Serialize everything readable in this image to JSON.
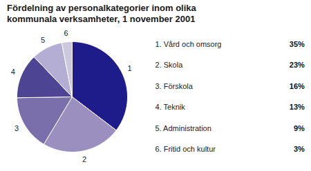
{
  "chart_data": {
    "type": "pie",
    "title": "Fördelning av personalkategorier inom olika\nkommunala verksamheter, 1 november 2001",
    "categories": [
      "1. Vård och omsorg",
      "2. Skola",
      "3. Förskola",
      "4. Teknik",
      "5. Administration",
      "6. Fritid och kultur"
    ],
    "labels": [
      "1",
      "2",
      "3",
      "4",
      "5",
      "6"
    ],
    "values": [
      35,
      23,
      16,
      13,
      9,
      3
    ],
    "value_labels": [
      "35%",
      "23%",
      "16%",
      "13%",
      "9%",
      "3%"
    ],
    "colors": [
      "#1e1b8b",
      "#9b8fc0",
      "#7a6faa",
      "#4e4494",
      "#b5aed4",
      "#cdc8e0"
    ],
    "legend": "right"
  }
}
